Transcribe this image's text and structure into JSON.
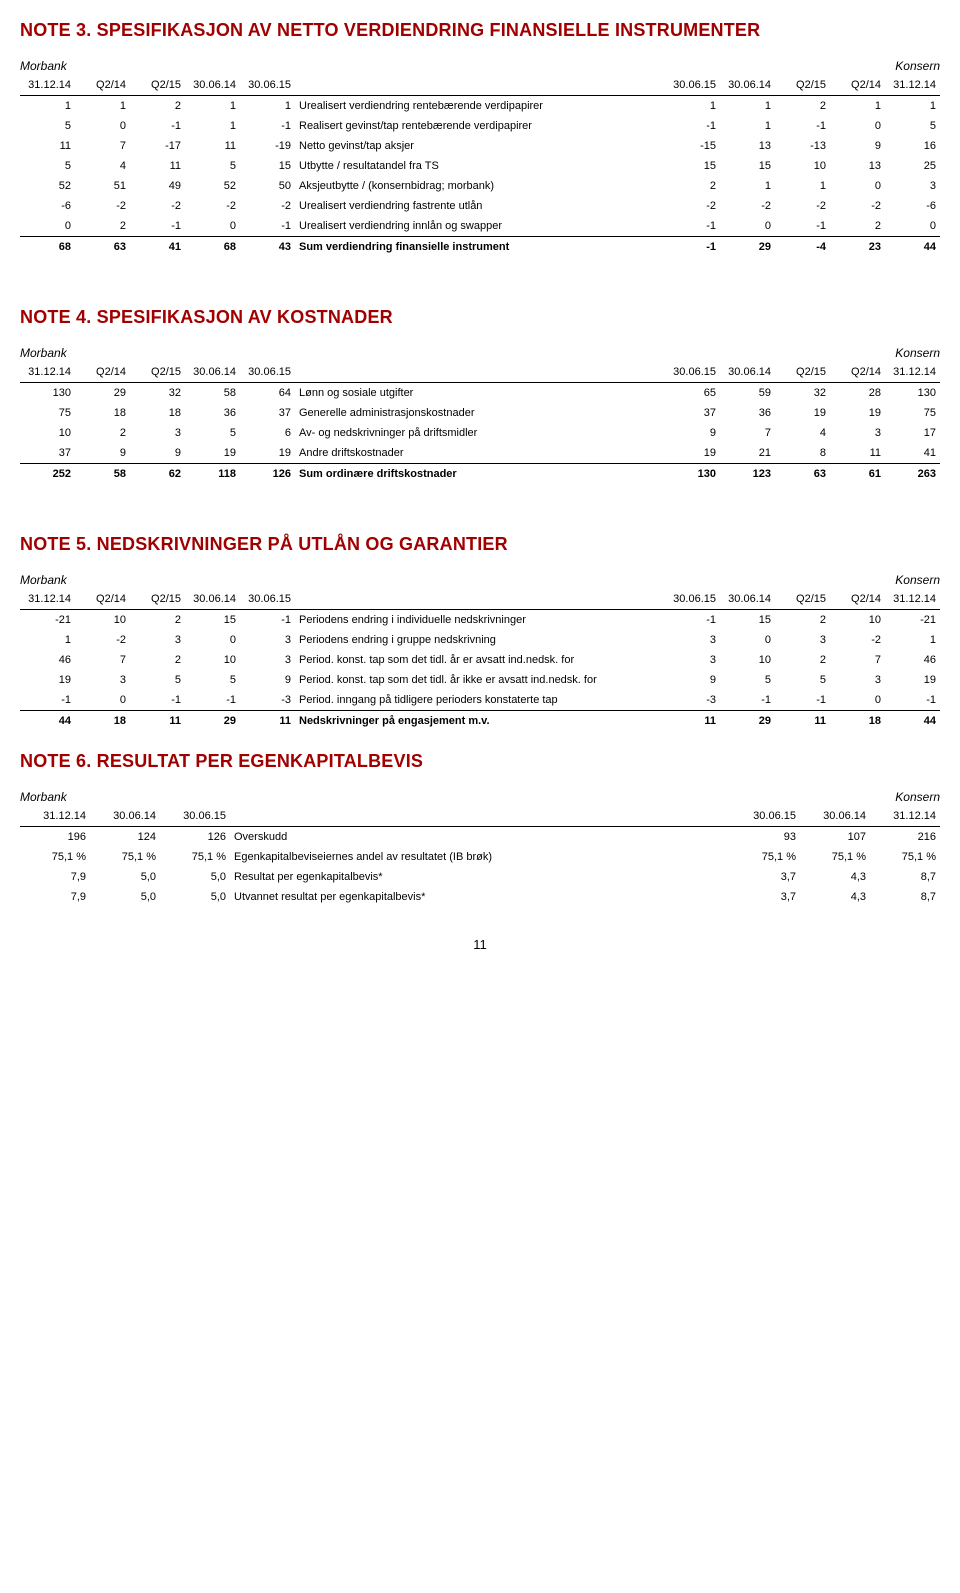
{
  "labels": {
    "morbank": "Morbank",
    "konsern": "Konsern"
  },
  "pageNumber": "11",
  "note3": {
    "title": "NOTE 3. SPESIFIKASJON AV NETTO VERDIENDRING FINANSIELLE INSTRUMENTER",
    "left_headers": [
      "31.12.14",
      "Q2/14",
      "Q2/15",
      "30.06.14",
      "30.06.15"
    ],
    "right_headers": [
      "30.06.15",
      "30.06.14",
      "Q2/15",
      "Q2/14",
      "31.12.14"
    ],
    "rows": [
      {
        "l": [
          "1",
          "1",
          "2",
          "1",
          "1"
        ],
        "label": "Urealisert verdiendring rentebærende verdipapirer",
        "r": [
          "1",
          "1",
          "2",
          "1",
          "1"
        ]
      },
      {
        "l": [
          "5",
          "0",
          "-1",
          "1",
          "-1"
        ],
        "label": "Realisert gevinst/tap rentebærende verdipapirer",
        "r": [
          "-1",
          "1",
          "-1",
          "0",
          "5"
        ]
      },
      {
        "l": [
          "11",
          "7",
          "-17",
          "11",
          "-19"
        ],
        "label": "Netto gevinst/tap aksjer",
        "r": [
          "-15",
          "13",
          "-13",
          "9",
          "16"
        ]
      },
      {
        "l": [
          "5",
          "4",
          "11",
          "5",
          "15"
        ],
        "label": "Utbytte / resultatandel fra TS",
        "r": [
          "15",
          "15",
          "10",
          "13",
          "25"
        ]
      },
      {
        "l": [
          "52",
          "51",
          "49",
          "52",
          "50"
        ],
        "label": "Aksjeutbytte / (konsernbidrag; morbank)",
        "r": [
          "2",
          "1",
          "1",
          "0",
          "3"
        ]
      },
      {
        "l": [
          "-6",
          "-2",
          "-2",
          "-2",
          "-2"
        ],
        "label": "Urealisert verdiendring fastrente utlån",
        "r": [
          "-2",
          "-2",
          "-2",
          "-2",
          "-6"
        ]
      },
      {
        "l": [
          "0",
          "2",
          "-1",
          "0",
          "-1"
        ],
        "label": "Urealisert verdiendring innlån og swapper",
        "r": [
          "-1",
          "0",
          "-1",
          "2",
          "0"
        ]
      }
    ],
    "total": {
      "l": [
        "68",
        "63",
        "41",
        "68",
        "43"
      ],
      "label": "Sum verdiendring finansielle instrument",
      "r": [
        "-1",
        "29",
        "-4",
        "23",
        "44"
      ]
    }
  },
  "note4": {
    "title": "NOTE 4. SPESIFIKASJON AV KOSTNADER",
    "left_headers": [
      "31.12.14",
      "Q2/14",
      "Q2/15",
      "30.06.14",
      "30.06.15"
    ],
    "right_headers": [
      "30.06.15",
      "30.06.14",
      "Q2/15",
      "Q2/14",
      "31.12.14"
    ],
    "rows": [
      {
        "l": [
          "130",
          "29",
          "32",
          "58",
          "64"
        ],
        "label": "Lønn og sosiale utgifter",
        "r": [
          "65",
          "59",
          "32",
          "28",
          "130"
        ]
      },
      {
        "l": [
          "75",
          "18",
          "18",
          "36",
          "37"
        ],
        "label": "Generelle administrasjonskostnader",
        "r": [
          "37",
          "36",
          "19",
          "19",
          "75"
        ]
      },
      {
        "l": [
          "10",
          "2",
          "3",
          "5",
          "6"
        ],
        "label": "Av- og nedskrivninger på driftsmidler",
        "r": [
          "9",
          "7",
          "4",
          "3",
          "17"
        ]
      },
      {
        "l": [
          "37",
          "9",
          "9",
          "19",
          "19"
        ],
        "label": "Andre driftskostnader",
        "r": [
          "19",
          "21",
          "8",
          "11",
          "41"
        ]
      }
    ],
    "total": {
      "l": [
        "252",
        "58",
        "62",
        "118",
        "126"
      ],
      "label": "Sum ordinære driftskostnader",
      "r": [
        "130",
        "123",
        "63",
        "61",
        "263"
      ]
    }
  },
  "note5": {
    "title": "NOTE 5. NEDSKRIVNINGER PÅ UTLÅN OG GARANTIER",
    "left_headers": [
      "31.12.14",
      "Q2/14",
      "Q2/15",
      "30.06.14",
      "30.06.15"
    ],
    "right_headers": [
      "30.06.15",
      "30.06.14",
      "Q2/15",
      "Q2/14",
      "31.12.14"
    ],
    "rows": [
      {
        "l": [
          "-21",
          "10",
          "2",
          "15",
          "-1"
        ],
        "label": "Periodens endring i individuelle nedskrivninger",
        "r": [
          "-1",
          "15",
          "2",
          "10",
          "-21"
        ]
      },
      {
        "l": [
          "1",
          "-2",
          "3",
          "0",
          "3"
        ],
        "label": "Periodens endring i gruppe nedskrivning",
        "r": [
          "3",
          "0",
          "3",
          "-2",
          "1"
        ]
      },
      {
        "l": [
          "46",
          "7",
          "2",
          "10",
          "3"
        ],
        "label": "Period. konst. tap som det tidl. år er avsatt ind.nedsk. for",
        "r": [
          "3",
          "10",
          "2",
          "7",
          "46"
        ]
      },
      {
        "l": [
          "19",
          "3",
          "5",
          "5",
          "9"
        ],
        "label": "Period. konst. tap som det tidl. år ikke er avsatt ind.nedsk. for",
        "r": [
          "9",
          "5",
          "5",
          "3",
          "19"
        ]
      },
      {
        "l": [
          "-1",
          "0",
          "-1",
          "-1",
          "-3"
        ],
        "label": "Period. inngang på tidligere perioders konstaterte tap",
        "r": [
          "-3",
          "-1",
          "-1",
          "0",
          "-1"
        ]
      }
    ],
    "total": {
      "l": [
        "44",
        "18",
        "11",
        "29",
        "11"
      ],
      "label": "Nedskrivninger på engasjement m.v.",
      "r": [
        "11",
        "29",
        "11",
        "18",
        "44"
      ]
    }
  },
  "note6": {
    "title": "NOTE 6. RESULTAT PER EGENKAPITALBEVIS",
    "left_headers": [
      "31.12.14",
      "30.06.14",
      "30.06.15"
    ],
    "right_headers": [
      "30.06.15",
      "30.06.14",
      "31.12.14"
    ],
    "rows": [
      {
        "l": [
          "196",
          "124",
          "126"
        ],
        "label": "Overskudd",
        "r": [
          "93",
          "107",
          "216"
        ]
      },
      {
        "l": [
          "75,1 %",
          "75,1 %",
          "75,1 %"
        ],
        "label": "Egenkapitalbeviseiernes andel av resultatet (IB brøk)",
        "r": [
          "75,1 %",
          "75,1 %",
          "75,1 %"
        ]
      },
      {
        "l": [
          "7,9",
          "5,0",
          "5,0"
        ],
        "label": "Resultat per egenkapitalbevis*",
        "r": [
          "3,7",
          "4,3",
          "8,7"
        ]
      },
      {
        "l": [
          "7,9",
          "5,0",
          "5,0"
        ],
        "label": "Utvannet resultat per egenkapitalbevis*",
        "r": [
          "3,7",
          "4,3",
          "8,7"
        ]
      }
    ]
  }
}
